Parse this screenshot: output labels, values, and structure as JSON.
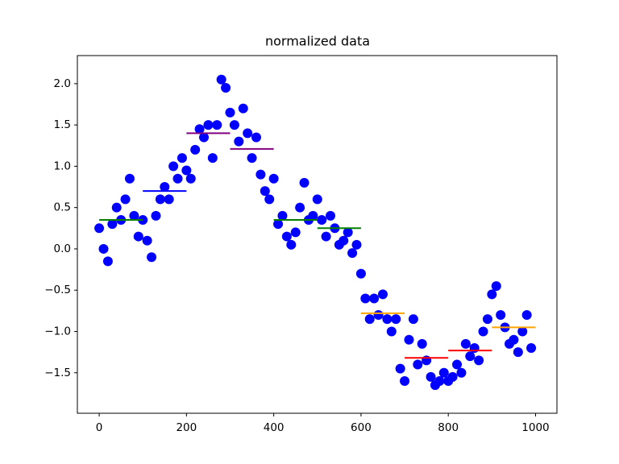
{
  "chart_data": {
    "type": "scatter",
    "title": "normalized data",
    "color": "blue",
    "x": [
      0,
      10,
      20,
      30,
      40,
      50,
      60,
      70,
      80,
      90,
      100,
      110,
      120,
      130,
      140,
      150,
      160,
      170,
      180,
      190,
      200,
      210,
      220,
      230,
      240,
      250,
      260,
      270,
      280,
      290,
      300,
      310,
      320,
      330,
      340,
      350,
      360,
      370,
      380,
      390,
      400,
      410,
      420,
      430,
      440,
      450,
      460,
      470,
      480,
      490,
      500,
      510,
      520,
      530,
      540,
      550,
      560,
      570,
      580,
      590,
      600,
      610,
      620,
      630,
      640,
      650,
      660,
      670,
      680,
      690,
      700,
      710,
      720,
      730,
      740,
      750,
      760,
      770,
      780,
      790,
      800,
      810,
      820,
      830,
      840,
      850,
      860,
      870,
      880,
      890,
      900,
      910,
      920,
      930,
      940,
      950,
      960,
      970,
      980,
      990
    ],
    "values": [
      0.25,
      0.0,
      -0.15,
      0.3,
      0.5,
      0.35,
      0.6,
      0.85,
      0.4,
      0.15,
      0.35,
      0.1,
      -0.1,
      0.4,
      0.6,
      0.75,
      0.6,
      1.0,
      0.85,
      1.1,
      0.95,
      0.85,
      1.2,
      1.45,
      1.35,
      1.5,
      1.1,
      1.5,
      2.05,
      1.95,
      1.65,
      1.5,
      1.3,
      1.7,
      1.4,
      1.1,
      1.35,
      0.9,
      0.7,
      0.6,
      0.85,
      0.3,
      0.4,
      0.15,
      0.05,
      0.2,
      0.5,
      0.8,
      0.35,
      0.4,
      0.6,
      0.35,
      0.15,
      0.4,
      0.25,
      0.05,
      0.1,
      0.2,
      -0.05,
      0.05,
      -0.3,
      -0.6,
      -0.85,
      -0.6,
      -0.8,
      -0.55,
      -0.85,
      -1.0,
      -0.85,
      -1.45,
      -1.6,
      -1.1,
      -0.85,
      -1.4,
      -1.15,
      -1.35,
      -1.55,
      -1.65,
      -1.6,
      -1.5,
      -1.6,
      -1.55,
      -1.4,
      -1.5,
      -1.15,
      -1.3,
      -1.2,
      -1.35,
      -1.0,
      -0.85,
      -0.55,
      -0.45,
      -0.8,
      -0.95,
      -1.15,
      -1.1,
      -1.25,
      -1.0,
      -0.8,
      -1.2
    ],
    "segments": [
      {
        "x": [
          0,
          100
        ],
        "value": 0.35,
        "color": "green"
      },
      {
        "x": [
          100,
          200
        ],
        "value": 0.7,
        "color": "blue"
      },
      {
        "x": [
          200,
          300
        ],
        "value": 1.4,
        "color": "purple"
      },
      {
        "x": [
          300,
          400
        ],
        "value": 1.21,
        "color": "purple"
      },
      {
        "x": [
          400,
          500
        ],
        "value": 0.35,
        "color": "green"
      },
      {
        "x": [
          500,
          600
        ],
        "value": 0.25,
        "color": "green"
      },
      {
        "x": [
          600,
          700
        ],
        "value": -0.78,
        "color": "orange"
      },
      {
        "x": [
          700,
          800
        ],
        "value": -1.32,
        "color": "red"
      },
      {
        "x": [
          800,
          900
        ],
        "value": -1.23,
        "color": "red"
      },
      {
        "x": [
          900,
          1000
        ],
        "value": -0.95,
        "color": "orange"
      }
    ],
    "xlim": [
      -50,
      1049
    ],
    "ylim": [
      -1.99,
      2.34
    ],
    "xticks": [
      0,
      200,
      400,
      600,
      800,
      1000
    ],
    "yticks": [
      {
        "value": -1.5,
        "label": "−1.5"
      },
      {
        "value": -1.0,
        "label": "−1.0"
      },
      {
        "value": -0.5,
        "label": "−0.5"
      },
      {
        "value": 0,
        "label": "0.0"
      },
      {
        "value": 0.5,
        "label": "0.5"
      },
      {
        "value": 1.0,
        "label": "1.0"
      },
      {
        "value": 1.5,
        "label": "1.5"
      },
      {
        "value": 2.0,
        "label": "2.0"
      }
    ],
    "grid": false
  }
}
